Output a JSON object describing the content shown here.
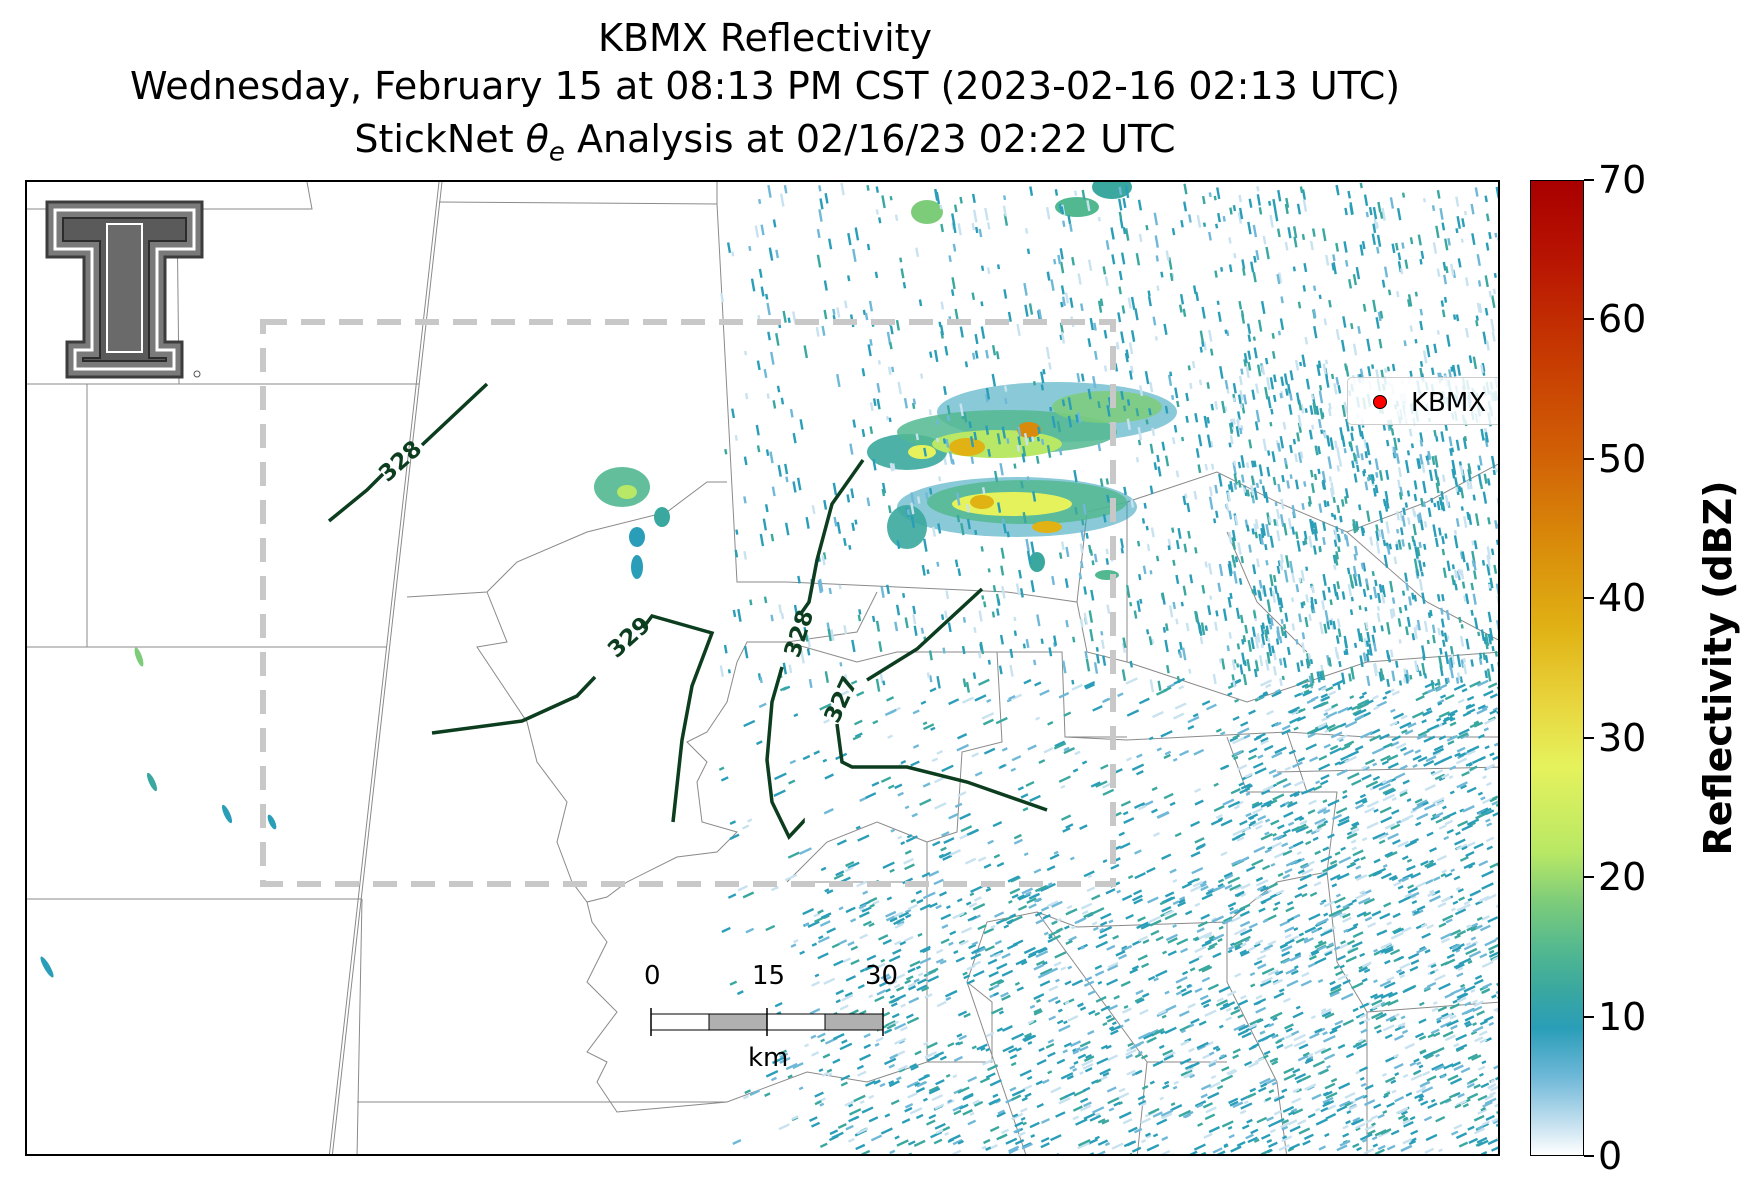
{
  "title": {
    "line1": "KBMX Reflectivity",
    "line2": "Wednesday, February 15 at 08:13 PM CST (2023-02-16 02:13 UTC)",
    "line3_pre": "StickNet ",
    "line3_symbol": "θ",
    "line3_sub": "e",
    "line3_post": " Analysis at 02/16/23 02:22 UTC"
  },
  "legend": {
    "label": "KBMX",
    "marker_color": "#ff0000"
  },
  "colorbar": {
    "title": "Reflectivity (dBZ)",
    "ticks": [
      "0",
      "10",
      "20",
      "30",
      "40",
      "50",
      "60",
      "70"
    ],
    "range": [
      0,
      70
    ]
  },
  "contours": {
    "color": "#0b3d1e",
    "labels": [
      "328",
      "329",
      "328",
      "327"
    ]
  },
  "scale_bar": {
    "labels": [
      "0",
      "15",
      "30"
    ],
    "unit": "km"
  },
  "logo": {
    "name": "texas-tech-double-t"
  },
  "colors": {
    "analysis_box": "#c8c8c8",
    "county_lines": "#8a8a8a"
  }
}
